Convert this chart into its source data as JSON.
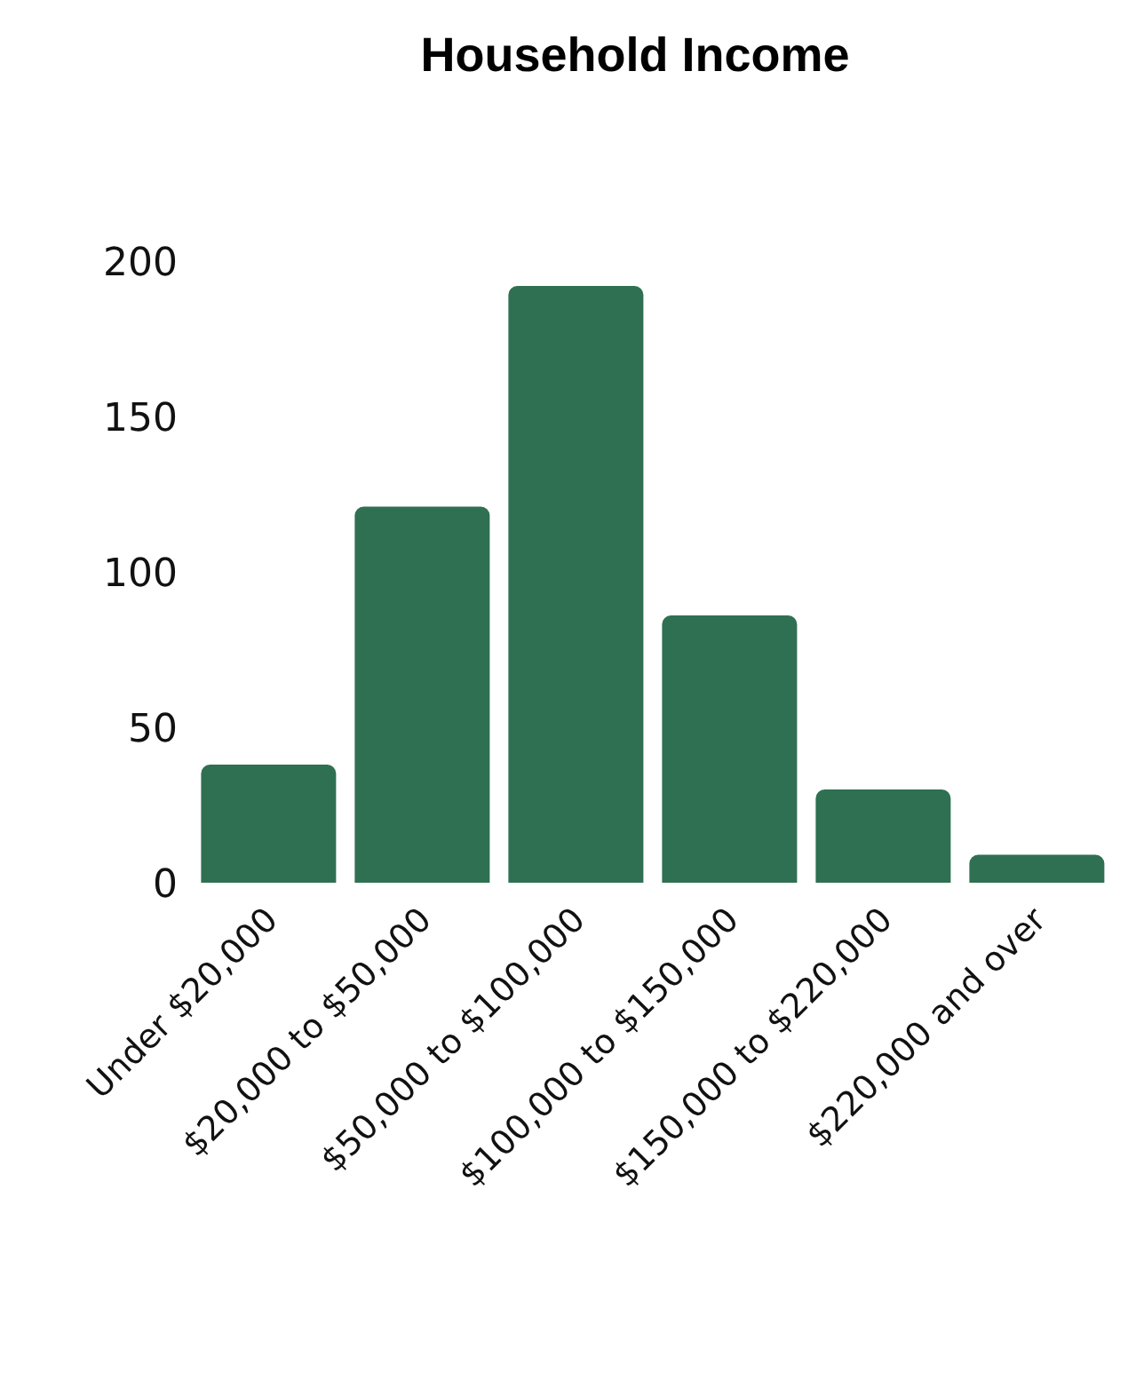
{
  "chart_data": {
    "type": "bar",
    "title": "Household Income",
    "categories": [
      "Under $20,000",
      "$20,000 to $50,000",
      "$50,000 to $100,000",
      "$100,000 to $150,000",
      "$150,000 to $220,000",
      "$220,000 and over"
    ],
    "values": [
      38,
      121,
      192,
      86,
      30,
      9
    ],
    "color": "#2f7052",
    "ylim": [
      0,
      200
    ],
    "yticks": [
      0,
      50,
      100,
      150,
      200
    ],
    "grid": false
  }
}
